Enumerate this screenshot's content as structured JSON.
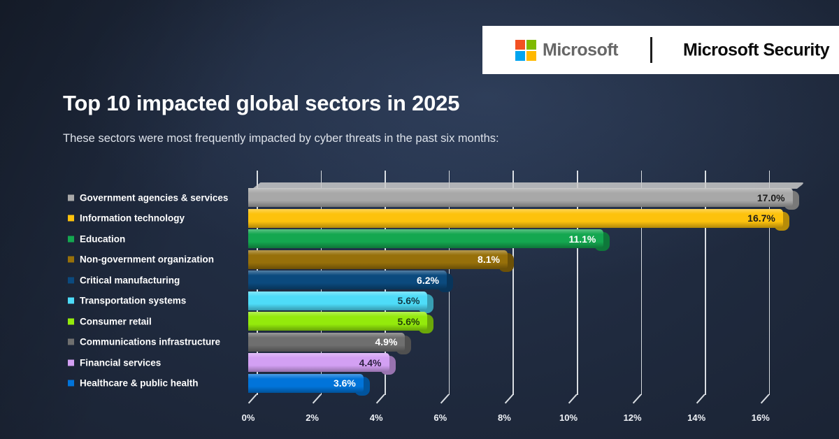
{
  "header": {
    "wordmark": "Microsoft",
    "product": "Microsoft Security",
    "logo_colors": {
      "top_left": "#f25022",
      "top_right": "#7fba00",
      "bottom_left": "#00a4ef",
      "bottom_right": "#ffb900"
    }
  },
  "title": "Top 10 impacted global sectors in 2025",
  "subtitle": "These sectors were most frequently impacted by cyber threats in the past six months:",
  "chart_data": {
    "type": "bar",
    "orientation": "horizontal",
    "title": "Top 10 impacted global sectors in 2025",
    "categories": [
      "Government agencies & services",
      "Information technology",
      "Education",
      "Non-government organization",
      "Critical manufacturing",
      "Transportation systems",
      "Consumer retail",
      "Communications infrastructure",
      "Financial services",
      "Healthcare & public health"
    ],
    "values": [
      17.0,
      16.7,
      11.1,
      8.1,
      6.2,
      5.6,
      5.6,
      4.9,
      4.4,
      3.6
    ],
    "value_labels": [
      "17.0%",
      "16.7%",
      "11.1%",
      "8.1%",
      "6.2%",
      "5.6%",
      "5.6%",
      "4.9%",
      "4.4%",
      "3.6%"
    ],
    "bar_colors": [
      "#a8a8a8",
      "#fdc20d",
      "#14a750",
      "#97700a",
      "#0b4a7e",
      "#4edcf8",
      "#94ea0c",
      "#6f6f6f",
      "#d3a0f3",
      "#0174da"
    ],
    "value_text_colors": [
      "#1b1b1b",
      "#1b1b1b",
      "#ffffff",
      "#ffffff",
      "#ffffff",
      "#123842",
      "#23410a",
      "#ffffff",
      "#2c2140",
      "#ffffff"
    ],
    "x_ticks": [
      "0%",
      "2%",
      "4%",
      "6%",
      "8%",
      "10%",
      "12%",
      "14%",
      "16%"
    ],
    "x_tick_values": [
      0,
      2,
      4,
      6,
      8,
      10,
      12,
      14,
      16
    ],
    "xlim": [
      0,
      17.5
    ],
    "xlabel": "",
    "ylabel": "",
    "unit": "percent",
    "grid": true,
    "legend_position": "left"
  }
}
